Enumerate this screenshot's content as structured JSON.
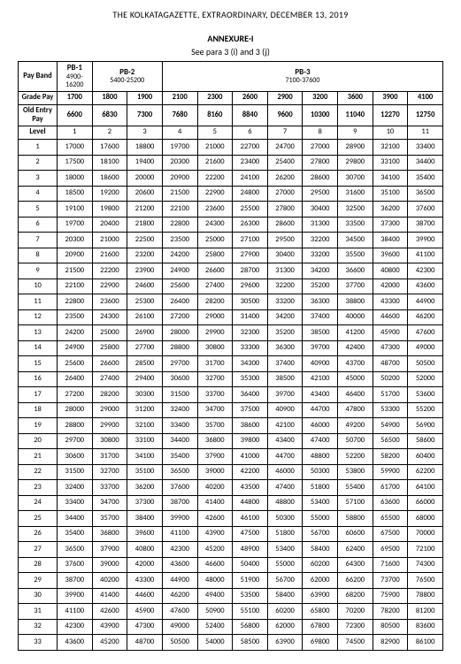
{
  "headerLine": "THE KOLKATAGAZETTE, EXTRAORDINARY, DECEMBER 13, 2019",
  "annexTitle": "ANNEXURE-I",
  "seePara": "See para 3 (i) and 3 (j)",
  "labels": {
    "payBand": "Pay Band",
    "gradePay": "Grade Pay",
    "oldEntryPay": "Old Entry Pay",
    "level": "Level"
  },
  "payBands": [
    {
      "name": "PB-1",
      "range": "4900-16200",
      "span": 1
    },
    {
      "name": "PB-2",
      "range": "5400-25200",
      "span": 2
    },
    {
      "name": "PB-3",
      "range": "7100-37600",
      "span": 8
    }
  ],
  "gradePays": [
    "1700",
    "1800",
    "1900",
    "2100",
    "2300",
    "2600",
    "2900",
    "3200",
    "3600",
    "3900",
    "4100"
  ],
  "oldEntryPays": [
    "6600",
    "6830",
    "7300",
    "7680",
    "8160",
    "8840",
    "9600",
    "10300",
    "11040",
    "12270",
    "12750"
  ],
  "levels": [
    "1",
    "2",
    "3",
    "4",
    "5",
    "6",
    "7",
    "8",
    "9",
    "10",
    "11"
  ],
  "rows": [
    {
      "n": "1",
      "v": [
        "17000",
        "17600",
        "18800",
        "19700",
        "21000",
        "22700",
        "24700",
        "27000",
        "28900",
        "32100",
        "33400"
      ]
    },
    {
      "n": "2",
      "v": [
        "17500",
        "18100",
        "19400",
        "20300",
        "21600",
        "23400",
        "25400",
        "27800",
        "29800",
        "33100",
        "34400"
      ]
    },
    {
      "n": "3",
      "v": [
        "18000",
        "18600",
        "20000",
        "20900",
        "22200",
        "24100",
        "26200",
        "28600",
        "30700",
        "34100",
        "35400"
      ]
    },
    {
      "n": "4",
      "v": [
        "18500",
        "19200",
        "20600",
        "21500",
        "22900",
        "24800",
        "27000",
        "29500",
        "31600",
        "35100",
        "36500"
      ]
    },
    {
      "n": "5",
      "v": [
        "19100",
        "19800",
        "21200",
        "22100",
        "23600",
        "25500",
        "27800",
        "30400",
        "32500",
        "36200",
        "37600"
      ]
    },
    {
      "n": "6",
      "v": [
        "19700",
        "20400",
        "21800",
        "22800",
        "24300",
        "26300",
        "28600",
        "31300",
        "33500",
        "37300",
        "38700"
      ]
    },
    {
      "n": "7",
      "v": [
        "20300",
        "21000",
        "22500",
        "23500",
        "25000",
        "27100",
        "29500",
        "32200",
        "34500",
        "38400",
        "39900"
      ]
    },
    {
      "n": "8",
      "v": [
        "20900",
        "21600",
        "23200",
        "24200",
        "25800",
        "27900",
        "30400",
        "33200",
        "35500",
        "39600",
        "41100"
      ]
    },
    {
      "n": "9",
      "v": [
        "21500",
        "22200",
        "23900",
        "24900",
        "26600",
        "28700",
        "31300",
        "34200",
        "36600",
        "40800",
        "42300"
      ]
    },
    {
      "n": "10",
      "v": [
        "22100",
        "22900",
        "24600",
        "25600",
        "27400",
        "29600",
        "32200",
        "35200",
        "37700",
        "42000",
        "43600"
      ]
    },
    {
      "n": "11",
      "v": [
        "22800",
        "23600",
        "25300",
        "26400",
        "28200",
        "30500",
        "33200",
        "36300",
        "38800",
        "43300",
        "44900"
      ]
    },
    {
      "n": "12",
      "v": [
        "23500",
        "24300",
        "26100",
        "27200",
        "29000",
        "31400",
        "34200",
        "37400",
        "40000",
        "44600",
        "46200"
      ]
    },
    {
      "n": "13",
      "v": [
        "24200",
        "25000",
        "26900",
        "28000",
        "29900",
        "32300",
        "35200",
        "38500",
        "41200",
        "45900",
        "47600"
      ]
    },
    {
      "n": "14",
      "v": [
        "24900",
        "25800",
        "27700",
        "28800",
        "30800",
        "33300",
        "36300",
        "39700",
        "42400",
        "47300",
        "49000"
      ]
    },
    {
      "n": "15",
      "v": [
        "25600",
        "26600",
        "28500",
        "29700",
        "31700",
        "34300",
        "37400",
        "40900",
        "43700",
        "48700",
        "50500"
      ]
    },
    {
      "n": "16",
      "v": [
        "26400",
        "27400",
        "29400",
        "30600",
        "32700",
        "35300",
        "38500",
        "42100",
        "45000",
        "50200",
        "52000"
      ]
    },
    {
      "n": "17",
      "v": [
        "27200",
        "28200",
        "30300",
        "31500",
        "33700",
        "36400",
        "39700",
        "43400",
        "46400",
        "51700",
        "53600"
      ]
    },
    {
      "n": "18",
      "v": [
        "28000",
        "29000",
        "31200",
        "32400",
        "34700",
        "37500",
        "40900",
        "44700",
        "47800",
        "53300",
        "55200"
      ]
    },
    {
      "n": "19",
      "v": [
        "28800",
        "29900",
        "32100",
        "33400",
        "35700",
        "38600",
        "42100",
        "46000",
        "49200",
        "54900",
        "56900"
      ]
    },
    {
      "n": "20",
      "v": [
        "29700",
        "30800",
        "33100",
        "34400",
        "36800",
        "39800",
        "43400",
        "47400",
        "50700",
        "56500",
        "58600"
      ]
    },
    {
      "n": "21",
      "v": [
        "30600",
        "31700",
        "34100",
        "35400",
        "37900",
        "41000",
        "44700",
        "48800",
        "52200",
        "58200",
        "60400"
      ]
    },
    {
      "n": "22",
      "v": [
        "31500",
        "32700",
        "35100",
        "36500",
        "39000",
        "42200",
        "46000",
        "50300",
        "53800",
        "59900",
        "62200"
      ]
    },
    {
      "n": "23",
      "v": [
        "32400",
        "33700",
        "36200",
        "37600",
        "40200",
        "43500",
        "47400",
        "51800",
        "55400",
        "61700",
        "64100"
      ]
    },
    {
      "n": "24",
      "v": [
        "33400",
        "34700",
        "37300",
        "38700",
        "41400",
        "44800",
        "48800",
        "53400",
        "57100",
        "63600",
        "66000"
      ]
    },
    {
      "n": "25",
      "v": [
        "34400",
        "35700",
        "38400",
        "39900",
        "42600",
        "46100",
        "50300",
        "55000",
        "58800",
        "65500",
        "68000"
      ]
    },
    {
      "n": "26",
      "v": [
        "35400",
        "36800",
        "39600",
        "41100",
        "43900",
        "47500",
        "51800",
        "56700",
        "60600",
        "67500",
        "70000"
      ]
    },
    {
      "n": "27",
      "v": [
        "36500",
        "37900",
        "40800",
        "42300",
        "45200",
        "48900",
        "53400",
        "58400",
        "62400",
        "69500",
        "72100"
      ]
    },
    {
      "n": "28",
      "v": [
        "37600",
        "39000",
        "42000",
        "43600",
        "46600",
        "50400",
        "55000",
        "60200",
        "64300",
        "71600",
        "74300"
      ]
    },
    {
      "n": "29",
      "v": [
        "38700",
        "40200",
        "43300",
        "44900",
        "48000",
        "51900",
        "56700",
        "62000",
        "66200",
        "73700",
        "76500"
      ]
    },
    {
      "n": "30",
      "v": [
        "39900",
        "41400",
        "44600",
        "46200",
        "49400",
        "53500",
        "58400",
        "63900",
        "68200",
        "75900",
        "78800"
      ]
    },
    {
      "n": "31",
      "v": [
        "41100",
        "42600",
        "45900",
        "47600",
        "50900",
        "55100",
        "60200",
        "65800",
        "70200",
        "78200",
        "81200"
      ]
    },
    {
      "n": "32",
      "v": [
        "42300",
        "43900",
        "47300",
        "49000",
        "52400",
        "56800",
        "62000",
        "67800",
        "72300",
        "80500",
        "83600"
      ]
    },
    {
      "n": "33",
      "v": [
        "43600",
        "45200",
        "48700",
        "50500",
        "54000",
        "58500",
        "63900",
        "69800",
        "74500",
        "82900",
        "86100"
      ]
    }
  ]
}
